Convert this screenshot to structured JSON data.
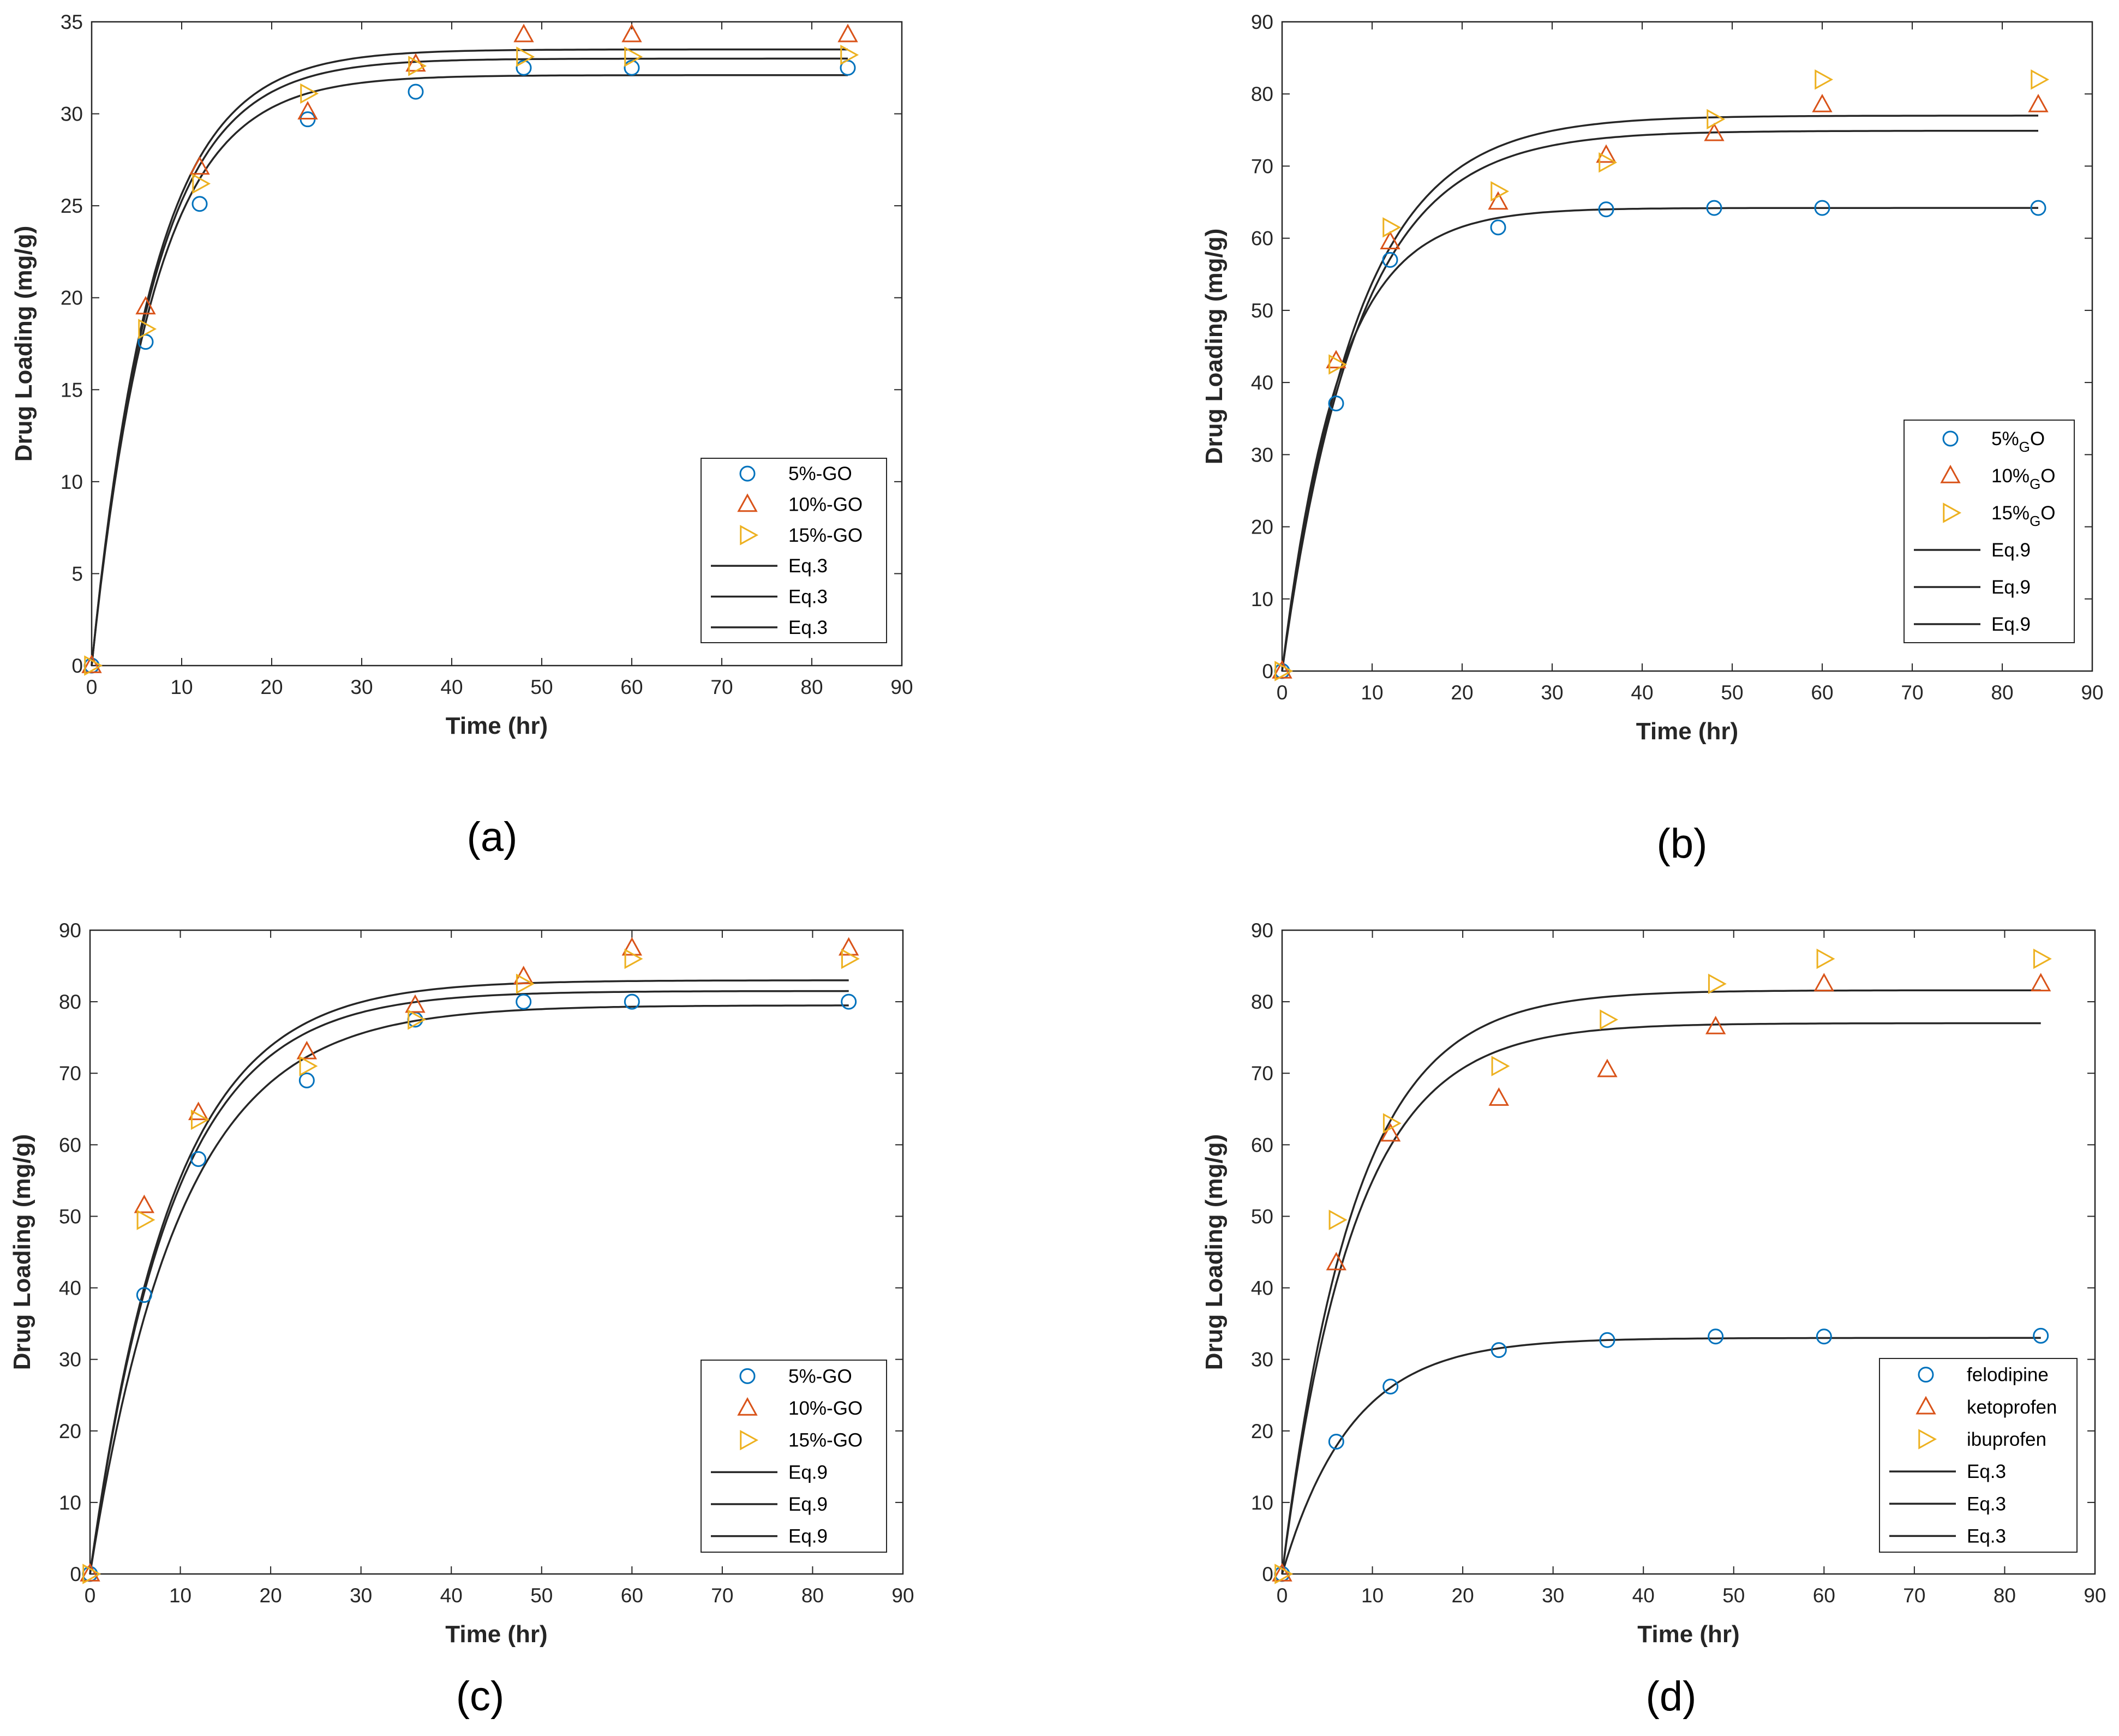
{
  "colors": {
    "series_1": "#0072BD",
    "series_2": "#D95319",
    "series_3": "#EDB120",
    "fit": "#262626",
    "axis": "#262626"
  },
  "chart_data": [
    {
      "type": "scatter",
      "panel": "a",
      "caption": "(a)",
      "xlabel": "Time (hr)",
      "ylabel": "Drug Loading (mg/g)",
      "xlim": [
        0,
        90
      ],
      "ylim": [
        0,
        35
      ],
      "xticks": [
        0,
        10,
        20,
        30,
        40,
        50,
        60,
        70,
        80,
        90
      ],
      "yticks": [
        0,
        5,
        10,
        15,
        20,
        25,
        30,
        35
      ],
      "legend_position": "bottom-right",
      "series": [
        {
          "name": "5%-GO",
          "marker": "circle",
          "x": [
            0,
            6,
            12,
            24,
            36,
            48,
            60,
            84
          ],
          "y": [
            0,
            17.6,
            25.1,
            29.7,
            31.2,
            32.5,
            32.5,
            32.5
          ]
        },
        {
          "name": "10%-GO",
          "marker": "triangle-up",
          "x": [
            0,
            6,
            12,
            24,
            36,
            48,
            60,
            84
          ],
          "y": [
            0,
            19.5,
            27.1,
            30.1,
            32.7,
            34.3,
            34.3,
            34.3
          ]
        },
        {
          "name": "15%-GO",
          "marker": "triangle-right",
          "x": [
            0,
            6,
            12,
            24,
            36,
            48,
            60,
            84
          ],
          "y": [
            0,
            18.3,
            26.2,
            31.1,
            32.6,
            33.1,
            33.1,
            33.2
          ]
        }
      ],
      "fits": [
        {
          "name": "Eq.3",
          "qe": 32.1,
          "k": 0.145
        },
        {
          "name": "Eq.3",
          "qe": 33.0,
          "k": 0.145
        },
        {
          "name": "Eq.3",
          "qe": 33.5,
          "k": 0.145
        }
      ]
    },
    {
      "type": "scatter",
      "panel": "b",
      "caption": "(b)",
      "xlabel": "Time (hr)",
      "ylabel": "Drug Loading (mg/g)",
      "xlim": [
        0,
        90
      ],
      "ylim": [
        0,
        90
      ],
      "xticks": [
        0,
        10,
        20,
        30,
        40,
        50,
        60,
        70,
        80,
        90
      ],
      "yticks": [
        0,
        10,
        20,
        30,
        40,
        50,
        60,
        70,
        80,
        90
      ],
      "legend_position": "bottom-right",
      "series": [
        {
          "name": "5%",
          "name_sub": "G",
          "name_tail": "O",
          "marker": "circle",
          "x": [
            0,
            6,
            12,
            24,
            36,
            48,
            60,
            84
          ],
          "y": [
            0,
            37.1,
            57.0,
            61.5,
            64.0,
            64.2,
            64.2,
            64.2
          ]
        },
        {
          "name": "10%",
          "name_sub": "G",
          "name_tail": "O",
          "marker": "triangle-up",
          "x": [
            0,
            6,
            12,
            24,
            36,
            48,
            60,
            84
          ],
          "y": [
            0,
            43.0,
            59.5,
            65.0,
            71.5,
            74.5,
            78.5,
            78.5
          ]
        },
        {
          "name": "15%",
          "name_sub": "G",
          "name_tail": "O",
          "marker": "triangle-right",
          "x": [
            0,
            6,
            12,
            24,
            36,
            48,
            60,
            84
          ],
          "y": [
            0,
            42.5,
            61.5,
            66.5,
            70.5,
            76.5,
            82.0,
            82.0
          ]
        }
      ],
      "fits": [
        {
          "name": "Eq.9",
          "qe": 64.2,
          "k": 0.16
        },
        {
          "name": "Eq.9",
          "qe": 74.9,
          "k": 0.12
        },
        {
          "name": "Eq.9",
          "qe": 77.0,
          "k": 0.12
        }
      ]
    },
    {
      "type": "scatter",
      "panel": "c",
      "caption": "(c)",
      "xlabel": "Time (hr)",
      "ylabel": "Drug Loading (mg/g)",
      "xlim": [
        0,
        90
      ],
      "ylim": [
        0,
        90
      ],
      "xticks": [
        0,
        10,
        20,
        30,
        40,
        50,
        60,
        70,
        80,
        90
      ],
      "yticks": [
        0,
        10,
        20,
        30,
        40,
        50,
        60,
        70,
        80,
        90
      ],
      "legend_position": "bottom-right",
      "series": [
        {
          "name": "5%-GO",
          "marker": "circle",
          "x": [
            0,
            6,
            12,
            24,
            36,
            48,
            60,
            84
          ],
          "y": [
            0,
            39.0,
            58.0,
            69.0,
            77.5,
            80.0,
            80.0,
            80.0
          ]
        },
        {
          "name": "10%-GO",
          "marker": "triangle-up",
          "x": [
            0,
            6,
            12,
            24,
            36,
            48,
            60,
            84
          ],
          "y": [
            0,
            51.5,
            64.5,
            73.0,
            79.5,
            83.5,
            87.5,
            87.5
          ]
        },
        {
          "name": "15%-GO",
          "marker": "triangle-right",
          "x": [
            0,
            6,
            12,
            24,
            36,
            48,
            60,
            84
          ],
          "y": [
            0,
            49.5,
            63.5,
            71.0,
            77.5,
            82.5,
            86.0,
            86.0
          ]
        }
      ],
      "fits": [
        {
          "name": "Eq.9",
          "qe": 79.5,
          "k": 0.1
        },
        {
          "name": "Eq.9",
          "qe": 81.5,
          "k": 0.11
        },
        {
          "name": "Eq.9",
          "qe": 83.0,
          "k": 0.11
        }
      ]
    },
    {
      "type": "scatter",
      "panel": "d",
      "caption": "(d)",
      "xlabel": "Time (hr)",
      "ylabel": "Drug Loading (mg/g)",
      "xlim": [
        0,
        90
      ],
      "ylim": [
        0,
        90
      ],
      "xticks": [
        0,
        10,
        20,
        30,
        40,
        50,
        60,
        70,
        80,
        90
      ],
      "yticks": [
        0,
        10,
        20,
        30,
        40,
        50,
        60,
        70,
        80,
        90
      ],
      "legend_position": "bottom-right",
      "series": [
        {
          "name": "felodipine",
          "marker": "circle",
          "x": [
            0,
            6,
            12,
            24,
            36,
            48,
            60,
            84
          ],
          "y": [
            0,
            18.5,
            26.2,
            31.3,
            32.7,
            33.2,
            33.2,
            33.3
          ]
        },
        {
          "name": "ketoprofen",
          "marker": "triangle-up",
          "x": [
            0,
            6,
            12,
            24,
            36,
            48,
            60,
            84
          ],
          "y": [
            0,
            43.5,
            61.5,
            66.5,
            70.5,
            76.5,
            82.5,
            82.5
          ]
        },
        {
          "name": "ibuprofen",
          "marker": "triangle-right",
          "x": [
            0,
            6,
            12,
            24,
            36,
            48,
            60,
            84
          ],
          "y": [
            0,
            49.5,
            63.0,
            71.0,
            77.5,
            82.5,
            86.0,
            86.0
          ]
        }
      ],
      "fits": [
        {
          "name": "Eq.3",
          "qe": 33.0,
          "k": 0.13
        },
        {
          "name": "Eq.3",
          "qe": 77.0,
          "k": 0.125
        },
        {
          "name": "Eq.3",
          "qe": 81.6,
          "k": 0.125
        }
      ]
    }
  ]
}
